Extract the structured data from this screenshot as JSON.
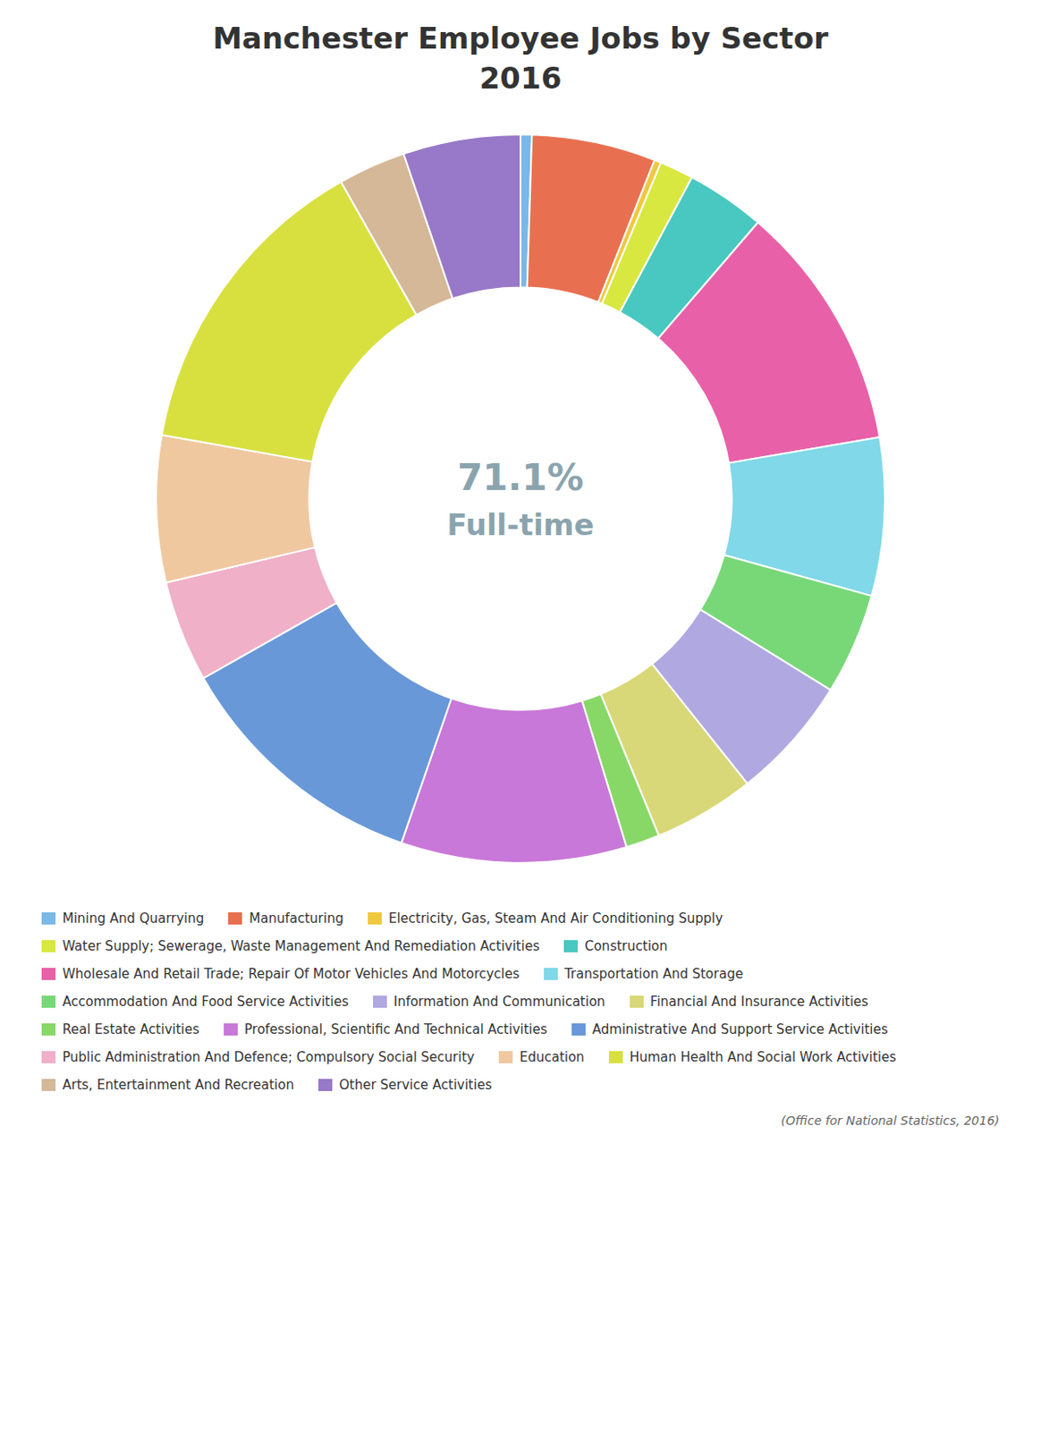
{
  "chart_data": {
    "type": "pie",
    "title": "Manchester Employee Jobs by Sector",
    "subtitle": "2016",
    "categories": [
      "Mining And Quarrying",
      "Manufacturing",
      "Electricity, Gas, Steam And Air Conditioning Supply",
      "Water Supply; Sewerage, Waste Management And Remediation Activities",
      "Construction",
      "Wholesale And Retail Trade; Repair Of Motor Vehicles And Motorcycles",
      "Transportation And Storage",
      "Accommodation And Food Service Activities",
      "Information And Communication",
      "Financial And Insurance Activities",
      "Real Estate Activities",
      "Professional, Scientific And Technical Activities",
      "Administrative And Support Service Activities",
      "Public Administration And Defence; Compulsory Social Security",
      "Education",
      "Human Health And Social Work Activities",
      "Arts, Entertainment And Recreation",
      "Other Service Activities"
    ],
    "values": [
      0.5,
      5.5,
      0.3,
      1.5,
      3.5,
      11.0,
      7.0,
      4.5,
      5.5,
      4.5,
      1.5,
      10.0,
      11.5,
      4.5,
      6.5,
      14.0,
      3.0,
      5.2
    ],
    "colors": [
      "#7ab8e8",
      "#e87050",
      "#f0c840",
      "#d8e840",
      "#48c8c0",
      "#e860a8",
      "#80d8e8",
      "#78d878",
      "#b0a8e0",
      "#d8d878",
      "#88d868",
      "#c878d8",
      "#6898d8",
      "#f0b0c8",
      "#f0c8a0",
      "#d8e040",
      "#d4b898",
      "#9878c8"
    ],
    "annotations": [
      "71.1%",
      "Full-time",
      "(Office for National Statistics, 2016)"
    ],
    "legend": "bottom"
  }
}
